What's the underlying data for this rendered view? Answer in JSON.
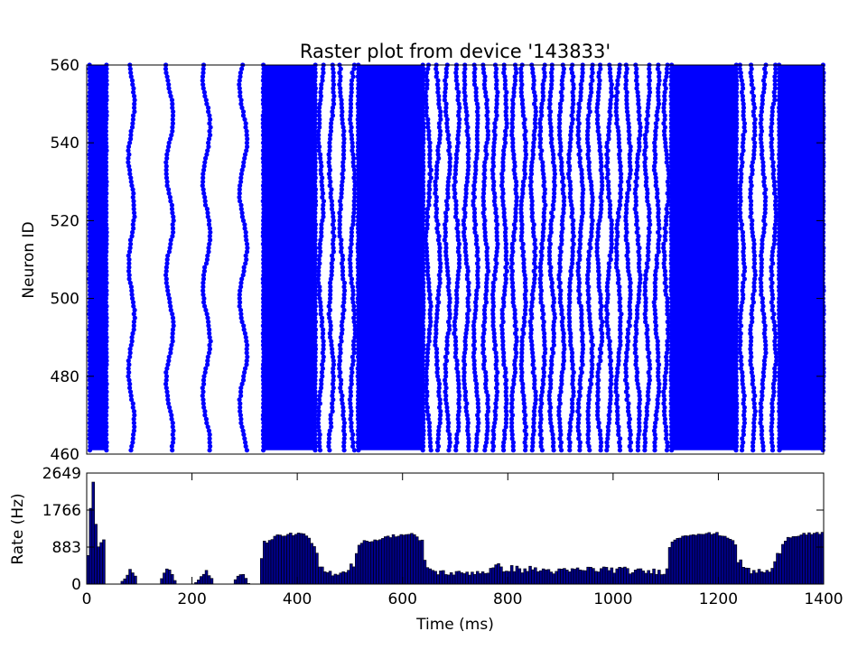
{
  "chart_data": [
    {
      "type": "scatter",
      "title": "Raster plot from device '143833'",
      "xlabel": "",
      "ylabel": "Neuron ID",
      "xlim": [
        0,
        1400
      ],
      "ylim": [
        460,
        560
      ],
      "yticks": [
        "460",
        "480",
        "500",
        "520",
        "540",
        "560"
      ],
      "marker_color": "#0000ff",
      "grid": false,
      "series": [
        {
          "neurons": [
            461,
            560
          ],
          "dense_bursts": [
            [
              5,
              38
            ],
            [
              335,
              435
            ],
            [
              515,
              640
            ],
            [
              1110,
              1235
            ],
            [
              1315,
              1400
            ]
          ],
          "sparse_waves": [
            [
              75,
              95
            ],
            [
              145,
              170
            ],
            [
              215,
              240
            ],
            [
              285,
              310
            ]
          ],
          "asynchronous_segments": [
            [
              435,
              515
            ],
            [
              640,
              1110
            ],
            [
              1235,
              1315
            ]
          ]
        }
      ]
    },
    {
      "type": "bar",
      "title": "",
      "xlabel": "Time (ms)",
      "ylabel": "Rate (Hz)",
      "xlim": [
        0,
        1400
      ],
      "ylim": [
        0,
        2649
      ],
      "yticks": [
        "0",
        "883",
        "1766",
        "2649"
      ],
      "xticks": [
        "0",
        "200",
        "400",
        "600",
        "800",
        "1000",
        "1200",
        "1400"
      ],
      "bar_color": "#00008b",
      "bin_width": 5,
      "rate_profile": [
        [
          0,
          0
        ],
        [
          10,
          2400
        ],
        [
          14,
          2400
        ],
        [
          15,
          1400
        ],
        [
          22,
          1400
        ],
        [
          23,
          300
        ],
        [
          26,
          300
        ],
        [
          28,
          1050
        ],
        [
          33,
          1050
        ],
        [
          36,
          0
        ],
        [
          65,
          0
        ],
        [
          70,
          120
        ],
        [
          80,
          250
        ],
        [
          85,
          400
        ],
        [
          90,
          250
        ],
        [
          97,
          0
        ],
        [
          138,
          0
        ],
        [
          142,
          120
        ],
        [
          150,
          300
        ],
        [
          160,
          300
        ],
        [
          168,
          100
        ],
        [
          172,
          0
        ],
        [
          205,
          0
        ],
        [
          212,
          120
        ],
        [
          222,
          300
        ],
        [
          230,
          250
        ],
        [
          238,
          100
        ],
        [
          242,
          0
        ],
        [
          278,
          0
        ],
        [
          282,
          120
        ],
        [
          292,
          300
        ],
        [
          300,
          200
        ],
        [
          308,
          0
        ],
        [
          330,
          0
        ],
        [
          335,
          1050
        ],
        [
          345,
          1000
        ],
        [
          360,
          1150
        ],
        [
          400,
          1200
        ],
        [
          420,
          1150
        ],
        [
          430,
          900
        ],
        [
          440,
          500
        ],
        [
          450,
          300
        ],
        [
          470,
          250
        ],
        [
          490,
          300
        ],
        [
          505,
          450
        ],
        [
          512,
          700
        ],
        [
          520,
          1000
        ],
        [
          550,
          1050
        ],
        [
          580,
          1150
        ],
        [
          620,
          1200
        ],
        [
          635,
          1000
        ],
        [
          645,
          500
        ],
        [
          655,
          300
        ],
        [
          700,
          250
        ],
        [
          760,
          300
        ],
        [
          780,
          400
        ],
        [
          820,
          350
        ],
        [
          850,
          350
        ],
        [
          900,
          300
        ],
        [
          950,
          350
        ],
        [
          1000,
          350
        ],
        [
          1050,
          300
        ],
        [
          1100,
          300
        ],
        [
          1110,
          950
        ],
        [
          1120,
          1100
        ],
        [
          1150,
          1200
        ],
        [
          1200,
          1200
        ],
        [
          1230,
          1050
        ],
        [
          1240,
          500
        ],
        [
          1260,
          300
        ],
        [
          1300,
          300
        ],
        [
          1310,
          500
        ],
        [
          1318,
          900
        ],
        [
          1330,
          1100
        ],
        [
          1360,
          1200
        ],
        [
          1400,
          1200
        ]
      ]
    }
  ]
}
